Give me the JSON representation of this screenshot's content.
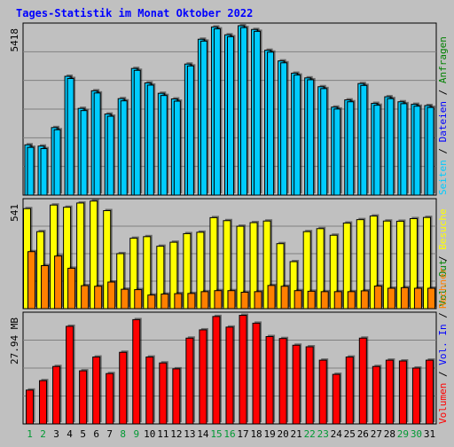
{
  "colors": {
    "background": "#C0C0C0",
    "title": "#0000FF",
    "hits": "#00CCFF",
    "files": "#00CCFF",
    "pages": "#FFFF00",
    "visits": "#FF8000",
    "kbytes": "#FF0000",
    "weekday": "#008000",
    "weekend": "#009933"
  },
  "chart_data": [
    {
      "type": "bar",
      "title": "Tages-Statistik im Monat Oktober 2022",
      "y_max_label": "5418",
      "legend": [
        "Anfragen",
        "Dateien",
        "Seiten",
        "Besuche",
        "Rechner",
        "Vol. Out",
        "Vol. In",
        "Volumen"
      ],
      "x": [
        "1",
        "2",
        "3",
        "4",
        "5",
        "6",
        "7",
        "8",
        "9",
        "10",
        "11",
        "12",
        "13",
        "14",
        "15",
        "16",
        "17",
        "18",
        "19",
        "20",
        "21",
        "22",
        "23",
        "24",
        "25",
        "26",
        "27",
        "28",
        "29",
        "30",
        "31"
      ],
      "weekend_days": [
        "1",
        "2",
        "8",
        "9",
        "15",
        "16",
        "22",
        "23",
        "29",
        "30"
      ],
      "ylim": [
        0,
        5418
      ],
      "series": [
        {
          "name": "Anfragen",
          "values": [
            1600,
            1560,
            2150,
            3780,
            2760,
            3320,
            2580,
            3070,
            4030,
            3570,
            3240,
            3060,
            4170,
            4960,
            5350,
            5100,
            5390,
            5270,
            4610,
            4270,
            3880,
            3730,
            3450,
            2800,
            3030,
            3550,
            2920,
            3130,
            2970,
            2890,
            2850
          ]
        },
        {
          "name": "Dateien",
          "values": [
            1520,
            1480,
            2080,
            3710,
            2690,
            3250,
            2510,
            3000,
            3970,
            3500,
            3170,
            2990,
            4110,
            4900,
            5290,
            5040,
            5330,
            5210,
            4550,
            4210,
            3820,
            3670,
            3390,
            2740,
            2970,
            3490,
            2860,
            3070,
            2910,
            2830,
            2790
          ]
        }
      ]
    },
    {
      "type": "bar",
      "y_max_label": "541",
      "legend": [
        "Besuche",
        "Rechner"
      ],
      "x": [
        "1",
        "2",
        "3",
        "4",
        "5",
        "6",
        "7",
        "8",
        "9",
        "10",
        "11",
        "12",
        "13",
        "14",
        "15",
        "16",
        "17",
        "18",
        "19",
        "20",
        "21",
        "22",
        "23",
        "24",
        "25",
        "26",
        "27",
        "28",
        "29",
        "30",
        "31"
      ],
      "ylim": [
        0,
        541
      ],
      "series": [
        {
          "name": "Besuche",
          "values": [
            500,
            385,
            518,
            507,
            528,
            538,
            490,
            275,
            352,
            360,
            312,
            332,
            375,
            382,
            455,
            440,
            412,
            430,
            438,
            325,
            235,
            385,
            400,
            367,
            428,
            445,
            463,
            438,
            437,
            450,
            456
          ]
        },
        {
          "name": "Rechner",
          "values": [
            285,
            215,
            263,
            202,
            115,
            112,
            133,
            97,
            95,
            68,
            73,
            75,
            76,
            85,
            90,
            90,
            82,
            85,
            116,
            112,
            90,
            87,
            85,
            85,
            85,
            89,
            113,
            102,
            105,
            102,
            102
          ]
        }
      ]
    },
    {
      "type": "bar",
      "y_max_label": "27.94 MB",
      "legend": [
        "Volumen"
      ],
      "x": [
        "1",
        "2",
        "3",
        "4",
        "5",
        "6",
        "7",
        "8",
        "9",
        "10",
        "11",
        "12",
        "13",
        "14",
        "15",
        "16",
        "17",
        "18",
        "19",
        "20",
        "21",
        "22",
        "23",
        "24",
        "25",
        "26",
        "27",
        "28",
        "29",
        "30",
        "31"
      ],
      "ylim": [
        0,
        27.94
      ],
      "series": [
        {
          "name": "Volumen",
          "values": [
            8.6,
            11.0,
            14.6,
            24.8,
            13.5,
            17.0,
            12.8,
            18.2,
            26.5,
            17.0,
            15.5,
            14.0,
            21.8,
            23.9,
            27.3,
            24.6,
            27.6,
            25.6,
            22.2,
            21.7,
            20.0,
            19.6,
            16.2,
            12.6,
            17.0,
            21.8,
            14.6,
            16.2,
            16.0,
            14.2,
            16.2
          ]
        }
      ]
    }
  ]
}
